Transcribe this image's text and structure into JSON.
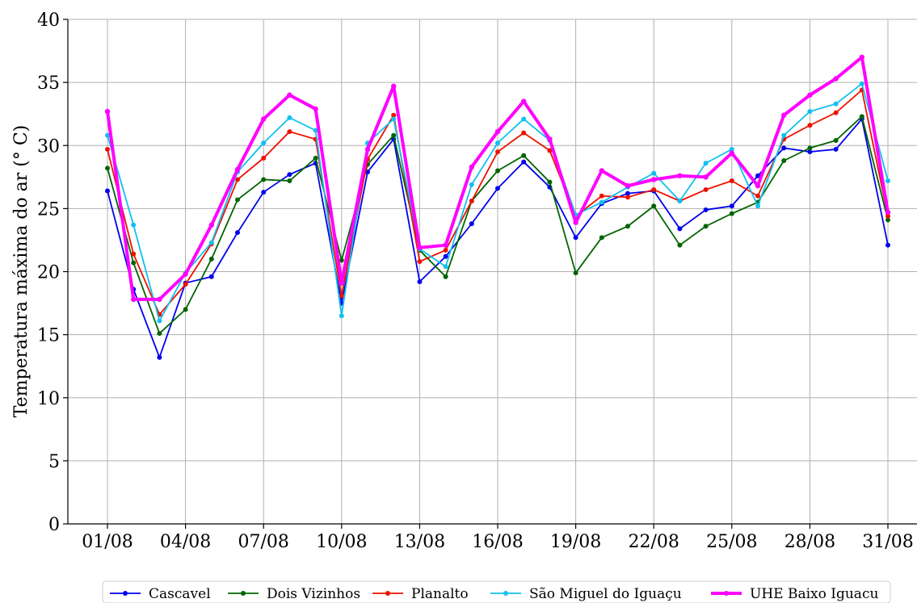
{
  "chart_data": {
    "type": "line",
    "title": "",
    "xlabel": "",
    "ylabel": "Temperatura máxima do ar ($^\\circ$ C)",
    "ylabel_display": "Temperatura máxima do ar (° C)",
    "ylim": [
      0,
      40
    ],
    "yticks": [
      0,
      5,
      10,
      15,
      20,
      25,
      30,
      35,
      40
    ],
    "x": [
      "01/08",
      "02/08",
      "03/08",
      "04/08",
      "05/08",
      "06/08",
      "07/08",
      "08/08",
      "09/08",
      "10/08",
      "11/08",
      "12/08",
      "13/08",
      "14/08",
      "15/08",
      "16/08",
      "17/08",
      "18/08",
      "19/08",
      "20/08",
      "21/08",
      "22/08",
      "23/08",
      "24/08",
      "25/08",
      "26/08",
      "27/08",
      "28/08",
      "29/08",
      "30/08",
      "31/08"
    ],
    "xticks": [
      "01/08",
      "04/08",
      "07/08",
      "10/08",
      "13/08",
      "16/08",
      "19/08",
      "22/08",
      "25/08",
      "28/08",
      "31/08"
    ],
    "grid": true,
    "legend_position": "bottom",
    "series": [
      {
        "name": "Cascavel",
        "color": "#0000ee",
        "values": [
          26.4,
          18.6,
          13.2,
          19.1,
          19.6,
          23.1,
          26.3,
          27.7,
          28.6,
          17.5,
          27.9,
          30.5,
          19.2,
          21.2,
          23.8,
          26.6,
          28.7,
          26.7,
          22.7,
          25.4,
          26.2,
          26.4,
          23.4,
          24.9,
          25.2,
          27.6,
          29.8,
          29.5,
          29.7,
          32.1,
          22.1
        ]
      },
      {
        "name": "Dois Vizinhos",
        "color": "#006400",
        "values": [
          28.2,
          20.7,
          15.1,
          17.0,
          21.0,
          25.7,
          27.3,
          27.2,
          29.0,
          20.9,
          28.5,
          30.8,
          21.7,
          19.6,
          25.6,
          28.0,
          29.2,
          27.1,
          19.9,
          22.7,
          23.6,
          25.2,
          22.1,
          23.6,
          24.6,
          25.5,
          28.8,
          29.8,
          30.4,
          32.3,
          24.1
        ]
      },
      {
        "name": "Planalto",
        "color": "#ee1100",
        "values": [
          29.7,
          21.4,
          16.6,
          19.0,
          22.2,
          27.3,
          29.0,
          31.1,
          30.5,
          18.1,
          28.9,
          32.4,
          20.8,
          21.7,
          25.6,
          29.5,
          31.0,
          29.6,
          24.4,
          26.0,
          25.9,
          26.5,
          25.6,
          26.5,
          27.2,
          26.0,
          30.5,
          31.6,
          32.6,
          34.4,
          24.4
        ]
      },
      {
        "name": "São Miguel do Iguaçu",
        "color": "#10c0f0",
        "values": [
          30.8,
          23.7,
          16.1,
          19.9,
          22.3,
          27.9,
          30.2,
          32.2,
          31.2,
          16.5,
          30.2,
          32.1,
          21.8,
          20.4,
          26.9,
          30.2,
          32.1,
          30.4,
          24.5,
          25.5,
          26.7,
          27.8,
          25.6,
          28.6,
          29.7,
          25.2,
          30.8,
          32.7,
          33.3,
          34.9,
          27.2
        ]
      },
      {
        "name": "UHE Baixo Iguacu",
        "color": "#ff00ff",
        "values": [
          32.7,
          17.8,
          17.8,
          19.8,
          23.7,
          28.1,
          32.1,
          34.0,
          32.9,
          19.1,
          29.7,
          34.7,
          21.9,
          22.1,
          28.3,
          31.1,
          33.5,
          30.5,
          23.9,
          28.0,
          26.8,
          27.3,
          27.6,
          27.5,
          29.4,
          26.8,
          32.4,
          34.0,
          35.3,
          37.0,
          24.7
        ]
      }
    ]
  }
}
